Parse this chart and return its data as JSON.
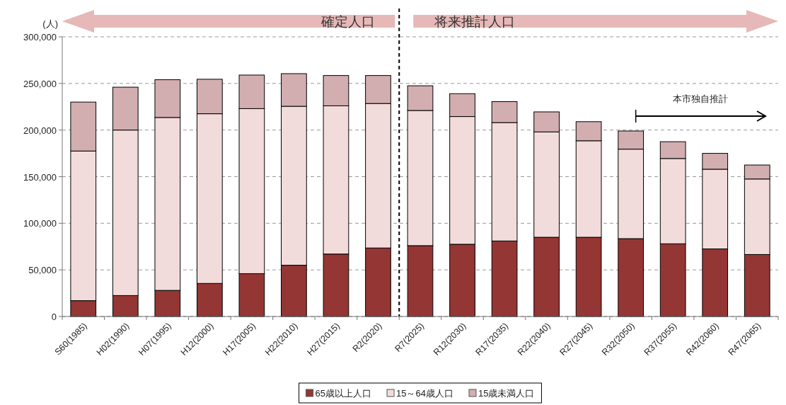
{
  "chart_data": {
    "type": "bar",
    "stacked": true,
    "ylabel": "(人)",
    "categories": [
      "S60(1985)",
      "H02(1990)",
      "H07(1995)",
      "H12(2000)",
      "H17(2005)",
      "H22(2010)",
      "H27(2015)",
      "R2(2020)",
      "R7(2025)",
      "R12(2030)",
      "R17(2035)",
      "R22(2040)",
      "R27(2045)",
      "R32(2050)",
      "R37(2055)",
      "R42(2060)",
      "R47(2065)"
    ],
    "series": [
      {
        "name": "65歳以上人口",
        "color": "#943634",
        "values": [
          17000,
          22500,
          28000,
          35500,
          46000,
          55000,
          67000,
          73500,
          76000,
          77500,
          81000,
          85000,
          85000,
          83500,
          78000,
          72500,
          66500
        ]
      },
      {
        "name": "15～64歳人口",
        "color": "#f2dcdb",
        "values": [
          160500,
          177500,
          185500,
          182000,
          177000,
          170500,
          159000,
          155000,
          145000,
          137000,
          127000,
          113000,
          103500,
          96000,
          91500,
          85500,
          81000
        ]
      },
      {
        "name": "15歳未満人口",
        "color": "#d2aeb1",
        "values": [
          52500,
          46000,
          40500,
          37000,
          36000,
          35000,
          32500,
          30000,
          26500,
          24500,
          22500,
          21500,
          20500,
          19500,
          18000,
          17000,
          15000
        ]
      }
    ],
    "ylim": [
      0,
      300000
    ],
    "yticks": [
      {
        "value": 0,
        "label": "0"
      },
      {
        "value": 50000,
        "label": "50,000"
      },
      {
        "value": 100000,
        "label": "100,000"
      },
      {
        "value": 150000,
        "label": "150,000"
      },
      {
        "value": 200000,
        "label": "200,000"
      },
      {
        "value": 250000,
        "label": "250,000"
      },
      {
        "value": 300000,
        "label": "300,000"
      }
    ],
    "grid": "y",
    "legend": "bottom",
    "ref_lines": [
      {
        "axis": "x",
        "value": "R7(2025)",
        "color": "#000000",
        "line_style": "dashed"
      }
    ],
    "annotations": [
      "確定人口",
      "将来推計人口",
      "本市独自推計"
    ]
  }
}
